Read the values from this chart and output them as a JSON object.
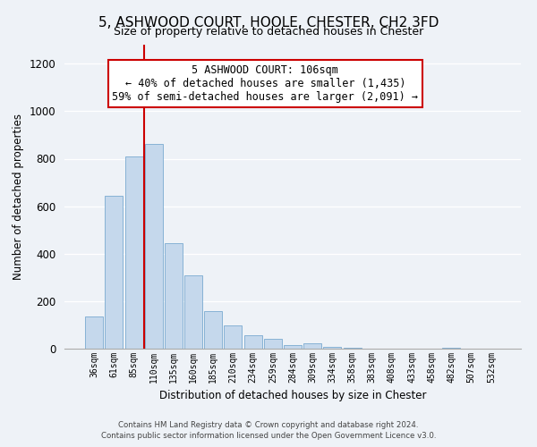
{
  "title": "5, ASHWOOD COURT, HOOLE, CHESTER, CH2 3FD",
  "subtitle": "Size of property relative to detached houses in Chester",
  "xlabel": "Distribution of detached houses by size in Chester",
  "ylabel": "Number of detached properties",
  "bar_labels": [
    "36sqm",
    "61sqm",
    "85sqm",
    "110sqm",
    "135sqm",
    "160sqm",
    "185sqm",
    "210sqm",
    "234sqm",
    "259sqm",
    "284sqm",
    "309sqm",
    "334sqm",
    "358sqm",
    "383sqm",
    "408sqm",
    "433sqm",
    "458sqm",
    "482sqm",
    "507sqm",
    "532sqm"
  ],
  "bar_values": [
    135,
    645,
    808,
    862,
    445,
    310,
    160,
    97,
    55,
    43,
    15,
    22,
    8,
    3,
    0,
    0,
    0,
    0,
    5,
    0,
    0
  ],
  "bar_color": "#c5d8ec",
  "bar_edge_color": "#7aaad0",
  "vline_x_index": 2.5,
  "vline_color": "#cc0000",
  "ylim": [
    0,
    1280
  ],
  "yticks": [
    0,
    200,
    400,
    600,
    800,
    1000,
    1200
  ],
  "annotation_title": "5 ASHWOOD COURT: 106sqm",
  "annotation_line1": "← 40% of detached houses are smaller (1,435)",
  "annotation_line2": "59% of semi-detached houses are larger (2,091) →",
  "annotation_box_color": "#ffffff",
  "annotation_box_edge": "#cc0000",
  "footer_line1": "Contains HM Land Registry data © Crown copyright and database right 2024.",
  "footer_line2": "Contains public sector information licensed under the Open Government Licence v3.0.",
  "bg_color": "#eef2f7"
}
